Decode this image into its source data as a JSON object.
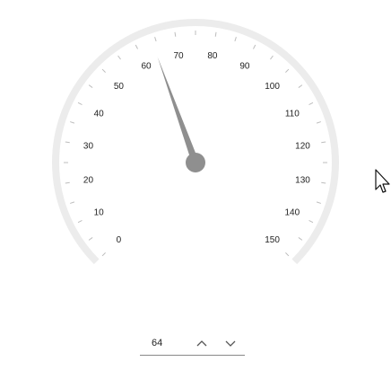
{
  "gauge": {
    "min": 0,
    "max": 150,
    "major_step": 10,
    "minor_step": 5,
    "value": 64,
    "track_color": "#ececec",
    "needle_color": "#8f8f8f",
    "tick_color": "#bdbdbd"
  },
  "stepper": {
    "value": "64",
    "up_icon": "chevron-up-icon",
    "down_icon": "chevron-down-icon"
  },
  "cursor": {
    "icon": "mouse-pointer-icon"
  }
}
